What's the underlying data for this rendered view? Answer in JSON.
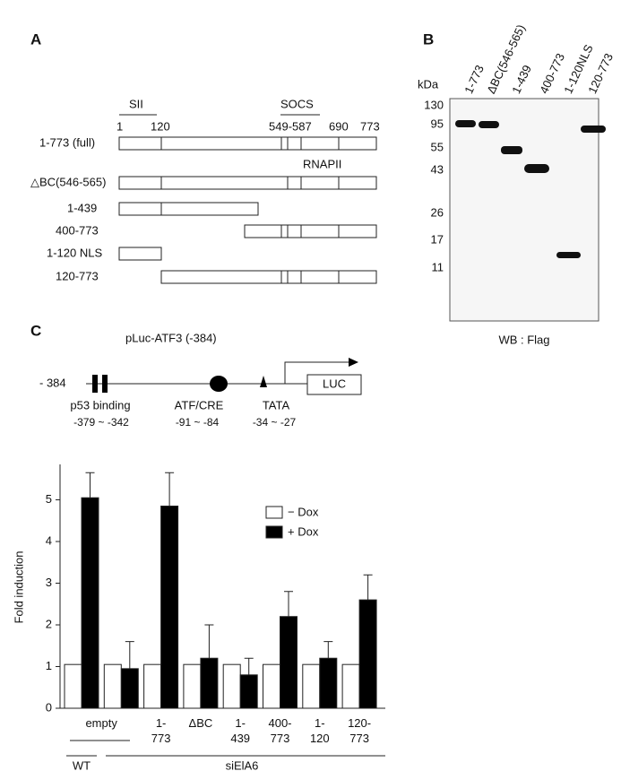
{
  "panel_a": {
    "label": "A",
    "domains": [
      "SII",
      "SOCS"
    ],
    "positions": [
      "1",
      "120",
      "549-587",
      "690",
      "773"
    ],
    "note": "RNAPII",
    "rows": [
      "1-773 (full)",
      "△BC(546-565)",
      "1-439",
      "400-773",
      "1-120 NLS",
      "120-773"
    ]
  },
  "panel_b": {
    "label": "B",
    "unit": "kDa",
    "markers": [
      "130",
      "95",
      "55",
      "43",
      "26",
      "17",
      "11"
    ],
    "lanes": [
      "1-773",
      "ΔBC(546-565)",
      "1-439",
      "400-773",
      "1-120NLS",
      "120-773"
    ],
    "footer": "WB : Flag"
  },
  "panel_c": {
    "label": "C",
    "title": "pLuc-ATF3 (-384)",
    "start": "- 384",
    "reporter": "LUC",
    "elements": [
      {
        "name": "p53 binding",
        "range": "-379 ~ -342"
      },
      {
        "name": "ATF/CRE",
        "range": "-91 ~ -84"
      },
      {
        "name": "TATA",
        "range": "-34 ~ -27"
      }
    ],
    "groups": [
      "WT",
      "siElA6"
    ]
  },
  "chart_data": {
    "type": "bar",
    "y_label": "Fold induction",
    "categories": [
      [
        "empty"
      ],
      null,
      [
        "1-",
        "773"
      ],
      [
        "ΔBC"
      ],
      [
        "1-",
        "439"
      ],
      [
        "400-",
        "773"
      ],
      [
        "1-",
        "120"
      ],
      [
        "120-",
        "773"
      ]
    ],
    "series": [
      {
        "name": "− Dox",
        "color": "#ffffff",
        "values": [
          1.05,
          1.05,
          1.05,
          1.05,
          1.05,
          1.05,
          1.05,
          1.05
        ]
      },
      {
        "name": "+ Dox",
        "color": "#000000",
        "values": [
          5.05,
          0.95,
          4.85,
          1.2,
          0.8,
          2.2,
          1.2,
          2.6
        ],
        "errors": [
          0.6,
          0.65,
          0.8,
          0.8,
          0.4,
          0.6,
          0.4,
          0.6
        ]
      }
    ],
    "ylim": [
      0,
      5.85
    ],
    "yticks": [
      0,
      1,
      2,
      3,
      4,
      5
    ],
    "legend": "upper right"
  }
}
